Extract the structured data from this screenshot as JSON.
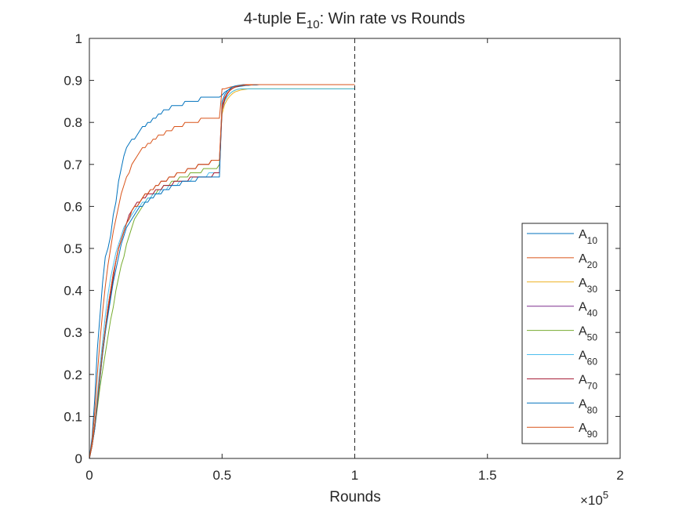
{
  "chart_data": {
    "type": "line",
    "title": {
      "prefix": "4-tuple E",
      "sub": "10",
      "suffix": ": Win rate vs Rounds"
    },
    "xlabel": "Rounds",
    "x_exponent": {
      "base": "×10",
      "power": "5"
    },
    "xlim": [
      0,
      2
    ],
    "ylim": [
      0,
      1
    ],
    "xticks": [
      0,
      0.5,
      1,
      1.5,
      2
    ],
    "xtick_labels": [
      "0",
      "0.5",
      "1",
      "1.5",
      "2"
    ],
    "yticks": [
      0,
      0.1,
      0.2,
      0.3,
      0.4,
      0.5,
      0.6,
      0.7,
      0.8,
      0.9,
      1
    ],
    "ytick_labels": [
      "0",
      "0.1",
      "0.2",
      "0.3",
      "0.4",
      "0.5",
      "0.6",
      "0.7",
      "0.8",
      "0.9",
      "1"
    ],
    "grid": false,
    "vline": {
      "x": 1,
      "style": "dashed"
    },
    "legend_position": "lower-right",
    "sample_step": 0.01,
    "series": [
      {
        "name": "A",
        "sub": "10",
        "color": "#0072BD",
        "values": [
          0.0,
          0.05,
          0.14,
          0.26,
          0.34,
          0.42,
          0.48,
          0.5,
          0.53,
          0.58,
          0.61,
          0.66,
          0.69,
          0.72,
          0.74,
          0.75,
          0.76,
          0.76,
          0.77,
          0.78,
          0.79,
          0.79,
          0.8,
          0.8,
          0.81,
          0.81,
          0.82,
          0.82,
          0.83,
          0.83,
          0.83,
          0.84,
          0.84,
          0.84,
          0.84,
          0.84,
          0.85,
          0.85,
          0.85,
          0.85,
          0.85,
          0.85,
          0.86,
          0.86,
          0.86,
          0.86,
          0.86,
          0.86,
          0.86,
          0.86,
          0.865,
          0.872,
          0.876,
          0.879,
          0.882,
          0.884,
          0.885,
          0.886,
          0.887,
          0.888,
          0.888,
          0.889,
          0.889,
          0.889,
          0.89,
          0.89,
          0.89,
          0.89,
          0.89,
          0.89,
          0.89,
          0.89,
          0.89,
          0.89,
          0.89,
          0.89,
          0.89,
          0.89,
          0.89,
          0.89,
          0.89,
          0.89,
          0.89,
          0.89,
          0.89,
          0.89,
          0.89,
          0.89,
          0.89,
          0.89,
          0.89,
          0.89,
          0.89,
          0.89,
          0.89,
          0.89,
          0.89,
          0.89,
          0.89,
          0.89,
          0.89
        ]
      },
      {
        "name": "A",
        "sub": "20",
        "color": "#D95319",
        "values": [
          0.0,
          0.04,
          0.11,
          0.2,
          0.28,
          0.35,
          0.41,
          0.46,
          0.5,
          0.54,
          0.57,
          0.6,
          0.63,
          0.65,
          0.67,
          0.68,
          0.7,
          0.71,
          0.72,
          0.73,
          0.74,
          0.74,
          0.75,
          0.75,
          0.76,
          0.76,
          0.77,
          0.77,
          0.77,
          0.78,
          0.78,
          0.78,
          0.79,
          0.79,
          0.79,
          0.79,
          0.8,
          0.8,
          0.8,
          0.8,
          0.8,
          0.8,
          0.81,
          0.81,
          0.81,
          0.81,
          0.81,
          0.81,
          0.81,
          0.81,
          0.88,
          0.88,
          0.882,
          0.884,
          0.885,
          0.886,
          0.887,
          0.888,
          0.888,
          0.889,
          0.889,
          0.889,
          0.89,
          0.89,
          0.89,
          0.89,
          0.89,
          0.89,
          0.89,
          0.89,
          0.89,
          0.89,
          0.89,
          0.89,
          0.89,
          0.89,
          0.89,
          0.89,
          0.89,
          0.89,
          0.89,
          0.89,
          0.89,
          0.89,
          0.89,
          0.89,
          0.89,
          0.89,
          0.89,
          0.89,
          0.89,
          0.89,
          0.89,
          0.89,
          0.89,
          0.89,
          0.89,
          0.89,
          0.89,
          0.89,
          0.89
        ]
      },
      {
        "name": "A",
        "sub": "30",
        "color": "#EDB120",
        "values": [
          0.0,
          0.03,
          0.08,
          0.14,
          0.2,
          0.26,
          0.31,
          0.36,
          0.4,
          0.44,
          0.47,
          0.5,
          0.52,
          0.54,
          0.56,
          0.57,
          0.59,
          0.6,
          0.6,
          0.61,
          0.62,
          0.63,
          0.63,
          0.64,
          0.64,
          0.65,
          0.65,
          0.66,
          0.66,
          0.66,
          0.67,
          0.67,
          0.67,
          0.68,
          0.68,
          0.68,
          0.68,
          0.69,
          0.69,
          0.69,
          0.69,
          0.7,
          0.7,
          0.7,
          0.7,
          0.7,
          0.71,
          0.71,
          0.71,
          0.71,
          0.82,
          0.843,
          0.855,
          0.863,
          0.869,
          0.873,
          0.875,
          0.877,
          0.878,
          0.879,
          0.88,
          0.88,
          0.88,
          0.88,
          0.88,
          0.88,
          0.88,
          0.88,
          0.88,
          0.88,
          0.88,
          0.88,
          0.88,
          0.88,
          0.88,
          0.88,
          0.88,
          0.88,
          0.88,
          0.88,
          0.88,
          0.88,
          0.88,
          0.88,
          0.88,
          0.88,
          0.88,
          0.88,
          0.88,
          0.88,
          0.88,
          0.88,
          0.88,
          0.88,
          0.88,
          0.88,
          0.88,
          0.88,
          0.88,
          0.88,
          0.88
        ]
      },
      {
        "name": "A",
        "sub": "40",
        "color": "#7E2F8E",
        "values": [
          0.0,
          0.03,
          0.08,
          0.14,
          0.2,
          0.26,
          0.31,
          0.36,
          0.4,
          0.44,
          0.47,
          0.5,
          0.52,
          0.54,
          0.56,
          0.57,
          0.59,
          0.6,
          0.6,
          0.61,
          0.62,
          0.63,
          0.63,
          0.64,
          0.64,
          0.65,
          0.65,
          0.66,
          0.66,
          0.66,
          0.67,
          0.67,
          0.67,
          0.68,
          0.68,
          0.68,
          0.68,
          0.69,
          0.69,
          0.69,
          0.69,
          0.7,
          0.7,
          0.7,
          0.7,
          0.7,
          0.71,
          0.71,
          0.71,
          0.71,
          0.84,
          0.859,
          0.87,
          0.877,
          0.882,
          0.885,
          0.887,
          0.888,
          0.889,
          0.89,
          0.89,
          0.89,
          0.89,
          0.89,
          0.89,
          0.89,
          0.89,
          0.89,
          0.89,
          0.89,
          0.89,
          0.89,
          0.89,
          0.89,
          0.89,
          0.89,
          0.89,
          0.89,
          0.89,
          0.89,
          0.89,
          0.89,
          0.89,
          0.89,
          0.89,
          0.89,
          0.89,
          0.89,
          0.89,
          0.89,
          0.89,
          0.89,
          0.89,
          0.89,
          0.89,
          0.89,
          0.89,
          0.89,
          0.89,
          0.89,
          0.89
        ]
      },
      {
        "name": "A",
        "sub": "50",
        "color": "#77AC30",
        "values": [
          0.0,
          0.03,
          0.07,
          0.12,
          0.17,
          0.21,
          0.25,
          0.29,
          0.33,
          0.36,
          0.4,
          0.43,
          0.46,
          0.48,
          0.51,
          0.53,
          0.55,
          0.57,
          0.58,
          0.59,
          0.6,
          0.61,
          0.62,
          0.62,
          0.63,
          0.63,
          0.64,
          0.64,
          0.65,
          0.65,
          0.65,
          0.66,
          0.66,
          0.66,
          0.67,
          0.67,
          0.67,
          0.67,
          0.68,
          0.68,
          0.68,
          0.68,
          0.68,
          0.69,
          0.69,
          0.69,
          0.69,
          0.69,
          0.69,
          0.7,
          0.83,
          0.851,
          0.862,
          0.869,
          0.874,
          0.877,
          0.879,
          0.88,
          0.88,
          0.88,
          0.88,
          0.88,
          0.88,
          0.88,
          0.88,
          0.88,
          0.88,
          0.88,
          0.88,
          0.88,
          0.88,
          0.88,
          0.88,
          0.88,
          0.88,
          0.88,
          0.88,
          0.88,
          0.88,
          0.88,
          0.88,
          0.88,
          0.88,
          0.88,
          0.88,
          0.88,
          0.88,
          0.88,
          0.88,
          0.88,
          0.88,
          0.88,
          0.88,
          0.88,
          0.88,
          0.88,
          0.88,
          0.88,
          0.88,
          0.88,
          0.88
        ]
      },
      {
        "name": "A",
        "sub": "60",
        "color": "#4DBEEE",
        "values": [
          0.0,
          0.03,
          0.08,
          0.15,
          0.22,
          0.28,
          0.34,
          0.39,
          0.43,
          0.46,
          0.49,
          0.51,
          0.53,
          0.55,
          0.56,
          0.57,
          0.58,
          0.59,
          0.6,
          0.6,
          0.61,
          0.61,
          0.62,
          0.62,
          0.63,
          0.63,
          0.63,
          0.64,
          0.64,
          0.64,
          0.65,
          0.65,
          0.65,
          0.65,
          0.66,
          0.66,
          0.66,
          0.66,
          0.66,
          0.67,
          0.67,
          0.67,
          0.67,
          0.67,
          0.67,
          0.68,
          0.68,
          0.68,
          0.68,
          0.68,
          0.83,
          0.851,
          0.862,
          0.869,
          0.874,
          0.877,
          0.879,
          0.88,
          0.88,
          0.88,
          0.88,
          0.88,
          0.88,
          0.88,
          0.88,
          0.88,
          0.88,
          0.88,
          0.88,
          0.88,
          0.88,
          0.88,
          0.88,
          0.88,
          0.88,
          0.88,
          0.88,
          0.88,
          0.88,
          0.88,
          0.88,
          0.88,
          0.88,
          0.88,
          0.88,
          0.88,
          0.88,
          0.88,
          0.88,
          0.88,
          0.88,
          0.88,
          0.88,
          0.88,
          0.88,
          0.88,
          0.88,
          0.88,
          0.88,
          0.88,
          0.88
        ]
      },
      {
        "name": "A",
        "sub": "70",
        "color": "#A2142F",
        "values": [
          0.0,
          0.03,
          0.07,
          0.13,
          0.19,
          0.25,
          0.3,
          0.35,
          0.39,
          0.43,
          0.47,
          0.5,
          0.52,
          0.54,
          0.56,
          0.58,
          0.59,
          0.6,
          0.61,
          0.61,
          0.62,
          0.62,
          0.63,
          0.63,
          0.63,
          0.64,
          0.64,
          0.64,
          0.65,
          0.65,
          0.65,
          0.65,
          0.66,
          0.66,
          0.66,
          0.66,
          0.66,
          0.66,
          0.67,
          0.67,
          0.67,
          0.67,
          0.67,
          0.67,
          0.67,
          0.67,
          0.67,
          0.68,
          0.68,
          0.68,
          0.83,
          0.855,
          0.868,
          0.876,
          0.881,
          0.884,
          0.886,
          0.888,
          0.889,
          0.889,
          0.89,
          0.89,
          0.89,
          0.89,
          0.89,
          0.89,
          0.89,
          0.89,
          0.89,
          0.89,
          0.89,
          0.89,
          0.89,
          0.89,
          0.89,
          0.89,
          0.89,
          0.89,
          0.89,
          0.89,
          0.89,
          0.89,
          0.89,
          0.89,
          0.89,
          0.89,
          0.89,
          0.89,
          0.89,
          0.89,
          0.89,
          0.89,
          0.89,
          0.89,
          0.89,
          0.89,
          0.89,
          0.89,
          0.89,
          0.89,
          0.89
        ]
      },
      {
        "name": "A",
        "sub": "80",
        "color": "#0072BD",
        "values": [
          0.0,
          0.03,
          0.07,
          0.13,
          0.19,
          0.25,
          0.3,
          0.34,
          0.38,
          0.42,
          0.45,
          0.48,
          0.51,
          0.53,
          0.55,
          0.56,
          0.57,
          0.58,
          0.59,
          0.6,
          0.6,
          0.61,
          0.61,
          0.62,
          0.62,
          0.63,
          0.63,
          0.63,
          0.64,
          0.64,
          0.64,
          0.65,
          0.65,
          0.65,
          0.65,
          0.66,
          0.66,
          0.66,
          0.66,
          0.66,
          0.66,
          0.67,
          0.67,
          0.67,
          0.67,
          0.67,
          0.67,
          0.67,
          0.67,
          0.67,
          0.85,
          0.866,
          0.875,
          0.881,
          0.885,
          0.887,
          0.888,
          0.889,
          0.89,
          0.89,
          0.89,
          0.89,
          0.89,
          0.89,
          0.89,
          0.89,
          0.89,
          0.89,
          0.89,
          0.89,
          0.89,
          0.89,
          0.89,
          0.89,
          0.89,
          0.89,
          0.89,
          0.89,
          0.89,
          0.89,
          0.89,
          0.89,
          0.89,
          0.89,
          0.89,
          0.89,
          0.89,
          0.89,
          0.89,
          0.89,
          0.89,
          0.89,
          0.89,
          0.89,
          0.89,
          0.89,
          0.89,
          0.89,
          0.89,
          0.89,
          0.89
        ]
      },
      {
        "name": "A",
        "sub": "90",
        "color": "#D95319",
        "values": [
          0.0,
          0.03,
          0.08,
          0.14,
          0.2,
          0.26,
          0.31,
          0.36,
          0.4,
          0.44,
          0.47,
          0.5,
          0.52,
          0.54,
          0.56,
          0.57,
          0.59,
          0.6,
          0.6,
          0.61,
          0.62,
          0.63,
          0.63,
          0.64,
          0.64,
          0.65,
          0.65,
          0.66,
          0.66,
          0.66,
          0.67,
          0.67,
          0.67,
          0.68,
          0.68,
          0.68,
          0.68,
          0.69,
          0.69,
          0.69,
          0.69,
          0.7,
          0.7,
          0.7,
          0.7,
          0.7,
          0.71,
          0.71,
          0.71,
          0.71,
          0.84,
          0.859,
          0.87,
          0.877,
          0.882,
          0.885,
          0.887,
          0.888,
          0.889,
          0.89,
          0.89,
          0.89,
          0.89,
          0.89,
          0.89,
          0.89,
          0.89,
          0.89,
          0.89,
          0.89,
          0.89,
          0.89,
          0.89,
          0.89,
          0.89,
          0.89,
          0.89,
          0.89,
          0.89,
          0.89,
          0.89,
          0.89,
          0.89,
          0.89,
          0.89,
          0.89,
          0.89,
          0.89,
          0.89,
          0.89,
          0.89,
          0.89,
          0.89,
          0.89,
          0.89,
          0.89,
          0.89,
          0.89,
          0.89,
          0.89,
          0.89
        ]
      }
    ]
  }
}
